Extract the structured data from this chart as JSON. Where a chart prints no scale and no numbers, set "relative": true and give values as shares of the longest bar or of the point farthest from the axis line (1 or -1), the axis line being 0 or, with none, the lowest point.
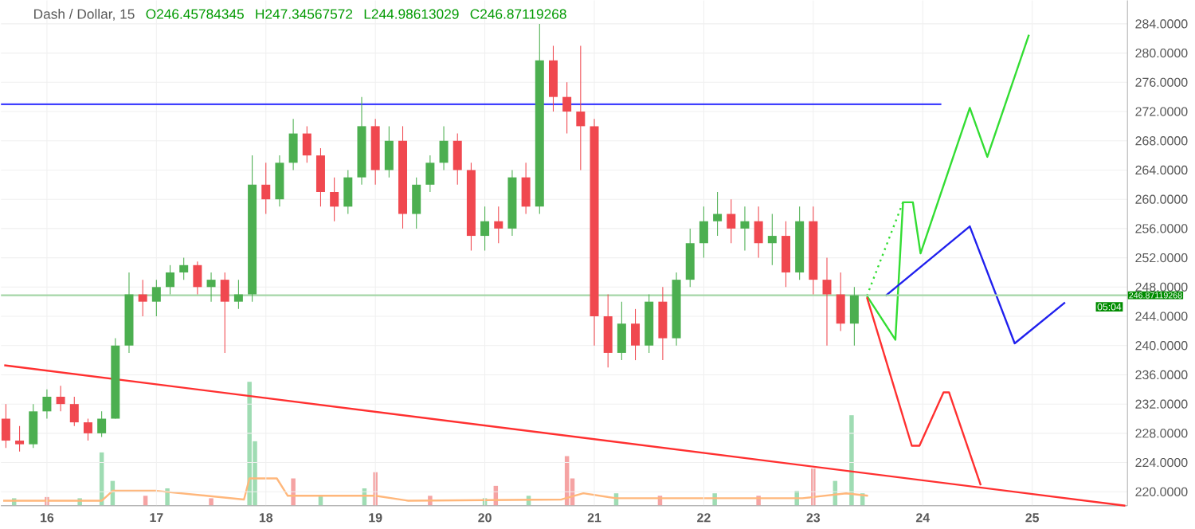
{
  "chart_data": [
    {
      "type": "candlestick",
      "title": "Dash / Dollar, 15",
      "annotations": [
        "O246.45784345",
        "H247.34567572",
        "L244.98613029",
        "C246.87119268",
        "05:04"
      ],
      "x": [
        15.625,
        15.75,
        15.875,
        16.0,
        16.125,
        16.25,
        16.375,
        16.5,
        16.625,
        16.75,
        16.875,
        17.0,
        17.125,
        17.25,
        17.375,
        17.5,
        17.625,
        17.75,
        17.875,
        18.0,
        18.125,
        18.25,
        18.375,
        18.5,
        18.625,
        18.75,
        18.875,
        19.0,
        19.125,
        19.25,
        19.375,
        19.5,
        19.625,
        19.75,
        19.875,
        20.0,
        20.125,
        20.25,
        20.375,
        20.5,
        20.625,
        20.75,
        20.875,
        21.0,
        21.125,
        21.25,
        21.375,
        21.5,
        21.625,
        21.75,
        21.875,
        22.0,
        22.125,
        22.25,
        22.375,
        22.5,
        22.625,
        22.75,
        22.875,
        23.0,
        23.125,
        23.25,
        23.375
      ],
      "ohlc": [
        [
          230,
          232,
          226,
          227
        ],
        [
          227,
          229,
          225.5,
          226.5
        ],
        [
          226.5,
          232,
          226,
          231
        ],
        [
          231,
          234,
          230,
          233
        ],
        [
          233,
          234.5,
          231,
          232
        ],
        [
          232,
          233,
          229,
          229.5
        ],
        [
          229.5,
          230,
          227,
          228
        ],
        [
          228,
          231,
          227.5,
          230
        ],
        [
          230,
          241,
          230,
          240
        ],
        [
          240,
          250,
          239,
          247
        ],
        [
          247,
          249,
          244,
          246
        ],
        [
          246,
          249,
          244,
          248
        ],
        [
          248,
          251,
          247,
          250
        ],
        [
          250,
          252,
          249,
          251
        ],
        [
          251,
          251.5,
          247,
          248
        ],
        [
          248,
          250,
          246,
          249
        ],
        [
          249,
          250,
          239,
          246
        ],
        [
          246,
          249,
          245,
          247
        ],
        [
          247,
          266,
          246,
          262
        ],
        [
          262,
          265,
          258,
          260
        ],
        [
          260,
          266,
          259,
          265
        ],
        [
          265,
          271,
          264,
          269
        ],
        [
          269,
          270,
          265,
          266
        ],
        [
          266,
          267,
          259,
          261
        ],
        [
          261,
          263,
          257,
          259
        ],
        [
          259,
          264,
          258,
          263
        ],
        [
          263,
          274,
          262,
          270
        ],
        [
          270,
          271,
          262,
          264
        ],
        [
          264,
          270,
          263,
          268
        ],
        [
          268,
          270,
          256,
          258
        ],
        [
          258,
          263,
          256,
          262
        ],
        [
          262,
          266,
          261,
          265
        ],
        [
          265,
          270,
          264,
          268
        ],
        [
          268,
          269,
          262,
          264
        ],
        [
          264,
          265,
          253,
          255
        ],
        [
          255,
          259,
          253,
          257
        ],
        [
          257,
          259,
          254,
          256
        ],
        [
          256,
          264,
          255,
          263
        ],
        [
          263,
          265,
          258,
          259
        ],
        [
          259,
          284,
          258,
          279
        ],
        [
          279,
          281,
          272,
          274
        ],
        [
          274,
          276,
          269,
          272
        ],
        [
          272,
          281,
          264,
          270
        ],
        [
          270,
          271,
          240,
          244
        ],
        [
          244,
          247,
          237,
          239
        ],
        [
          239,
          246,
          238,
          243
        ],
        [
          243,
          245,
          238,
          240
        ],
        [
          240,
          247,
          239,
          246
        ],
        [
          246,
          248,
          238,
          241
        ],
        [
          241,
          250,
          240,
          249
        ],
        [
          249,
          256,
          248,
          254
        ],
        [
          254,
          259,
          252,
          257
        ],
        [
          257,
          261,
          255,
          258
        ],
        [
          258,
          260,
          254,
          256
        ],
        [
          256,
          259,
          253,
          257
        ],
        [
          257,
          259,
          252,
          254
        ],
        [
          254,
          258,
          251,
          255
        ],
        [
          255,
          257,
          248,
          250
        ],
        [
          250,
          259,
          249,
          257
        ],
        [
          257,
          259,
          247,
          249
        ],
        [
          249,
          252,
          240,
          247
        ],
        [
          247,
          250,
          242,
          243
        ],
        [
          243,
          248,
          240,
          246.87
        ]
      ],
      "series": [
        {
          "type": "line",
          "color": "#ff3030",
          "x": [
            15.61,
            25.85
          ],
          "values": [
            237.3,
            218.1
          ]
        },
        {
          "type": "line",
          "color": "#4040ff",
          "x": [
            15.58,
            24.17
          ],
          "values": [
            273.0,
            273.0
          ]
        },
        {
          "type": "line",
          "color": "#33dd33",
          "line_style": "dotted",
          "x": [
            23.49,
            23.82
          ],
          "values": [
            246.8,
            259.6
          ]
        },
        {
          "type": "line",
          "color": "#33dd33",
          "x": [
            23.49,
            23.75,
            23.82,
            23.91,
            23.98,
            24.43,
            24.59,
            24.97
          ],
          "values": [
            246.8,
            240.8,
            259.6,
            259.6,
            252.6,
            272.5,
            265.8,
            282.5
          ]
        },
        {
          "type": "line",
          "color": "#2020ee",
          "x": [
            23.66,
            24.43,
            24.84,
            25.3
          ],
          "values": [
            246.8,
            256.3,
            240.3,
            245.9
          ]
        },
        {
          "type": "line",
          "color": "#ff3030",
          "x": [
            23.49,
            23.9,
            23.97,
            24.19,
            24.24,
            24.53
          ],
          "values": [
            246.6,
            226.3,
            226.3,
            233.6,
            233.6,
            220.9
          ]
        }
      ],
      "ref_lines": [
        {
          "axis": "y",
          "value": 246.87119268,
          "label": "246.87119268",
          "color": "#a5d6a7"
        }
      ],
      "xlim": [
        15.58,
        25.87
      ],
      "ylim": [
        218.1,
        287.2
      ],
      "xticks": [
        16,
        17,
        18,
        19,
        20,
        21,
        22,
        23,
        24,
        25
      ],
      "yticks": [
        {
          "value": 220,
          "label": "220.0000"
        },
        {
          "value": 224,
          "label": "224.0000"
        },
        {
          "value": 228,
          "label": "228.0000"
        },
        {
          "value": 232,
          "label": "232.0000"
        },
        {
          "value": 236,
          "label": "236.0000"
        },
        {
          "value": 240,
          "label": "240.0000"
        },
        {
          "value": 244,
          "label": "244.0000"
        },
        {
          "value": 248,
          "label": "248.0000"
        },
        {
          "value": 252,
          "label": "252.0000"
        },
        {
          "value": 256,
          "label": "256.0000"
        },
        {
          "value": 260,
          "label": "260.0000"
        },
        {
          "value": 264,
          "label": "264.0000"
        },
        {
          "value": 268,
          "label": "268.0000"
        },
        {
          "value": 272,
          "label": "272.0000"
        },
        {
          "value": 276,
          "label": "276.0000"
        },
        {
          "value": 280,
          "label": "280.0000"
        },
        {
          "value": 284,
          "label": "284.0000"
        }
      ],
      "grid": true
    },
    {
      "type": "bar",
      "relative": true,
      "tick_labels": false,
      "xlim": [
        15.58,
        25.87
      ],
      "series": [
        {
          "type": "bar",
          "x": [
            15.7,
            16.0,
            16.3,
            16.5,
            16.6,
            16.9,
            17.1,
            17.5,
            17.85,
            17.9,
            18.25,
            18.5,
            18.9,
            19.0,
            19.5,
            20.0,
            20.1,
            20.4,
            20.75,
            20.8,
            21.2,
            21.6,
            22.1,
            22.5,
            22.85,
            23.0,
            23.2,
            23.35,
            23.45
          ],
          "values": [
            0.06,
            0.07,
            0.06,
            0.43,
            0.2,
            0.08,
            0.14,
            0.06,
            1.0,
            0.52,
            0.22,
            0.08,
            0.14,
            0.27,
            0.08,
            0.06,
            0.16,
            0.08,
            0.4,
            0.22,
            0.1,
            0.08,
            0.1,
            0.08,
            0.12,
            0.3,
            0.2,
            0.73,
            0.1
          ],
          "colors": [
            "#9fdcb3",
            "#f5a3a3",
            "#9fdcb3",
            "#9fdcb3",
            "#9fdcb3",
            "#f5a3a3",
            "#9fdcb3",
            "#f5a3a3",
            "#9fdcb3",
            "#9fdcb3",
            "#f5a3a3",
            "#9fdcb3",
            "#9fdcb3",
            "#f5a3a3",
            "#f5a3a3",
            "#9fdcb3",
            "#f5a3a3",
            "#9fdcb3",
            "#f5a3a3",
            "#f5a3a3",
            "#9fdcb3",
            "#f5a3a3",
            "#9fdcb3",
            "#f5a3a3",
            "#9fdcb3",
            "#f5a3a3",
            "#9fdcb3",
            "#9fdcb3",
            "#9fdcb3"
          ]
        },
        {
          "type": "line",
          "color": "#ffb77b",
          "x": [
            15.6,
            16.5,
            16.6,
            17.0,
            17.8,
            17.85,
            18.1,
            18.2,
            19.0,
            19.3,
            20.7,
            20.9,
            21.2,
            22.9,
            23.3,
            23.5
          ],
          "values": [
            0.04,
            0.04,
            0.12,
            0.12,
            0.05,
            0.22,
            0.22,
            0.08,
            0.08,
            0.04,
            0.05,
            0.1,
            0.06,
            0.06,
            0.1,
            0.08
          ]
        }
      ]
    }
  ]
}
